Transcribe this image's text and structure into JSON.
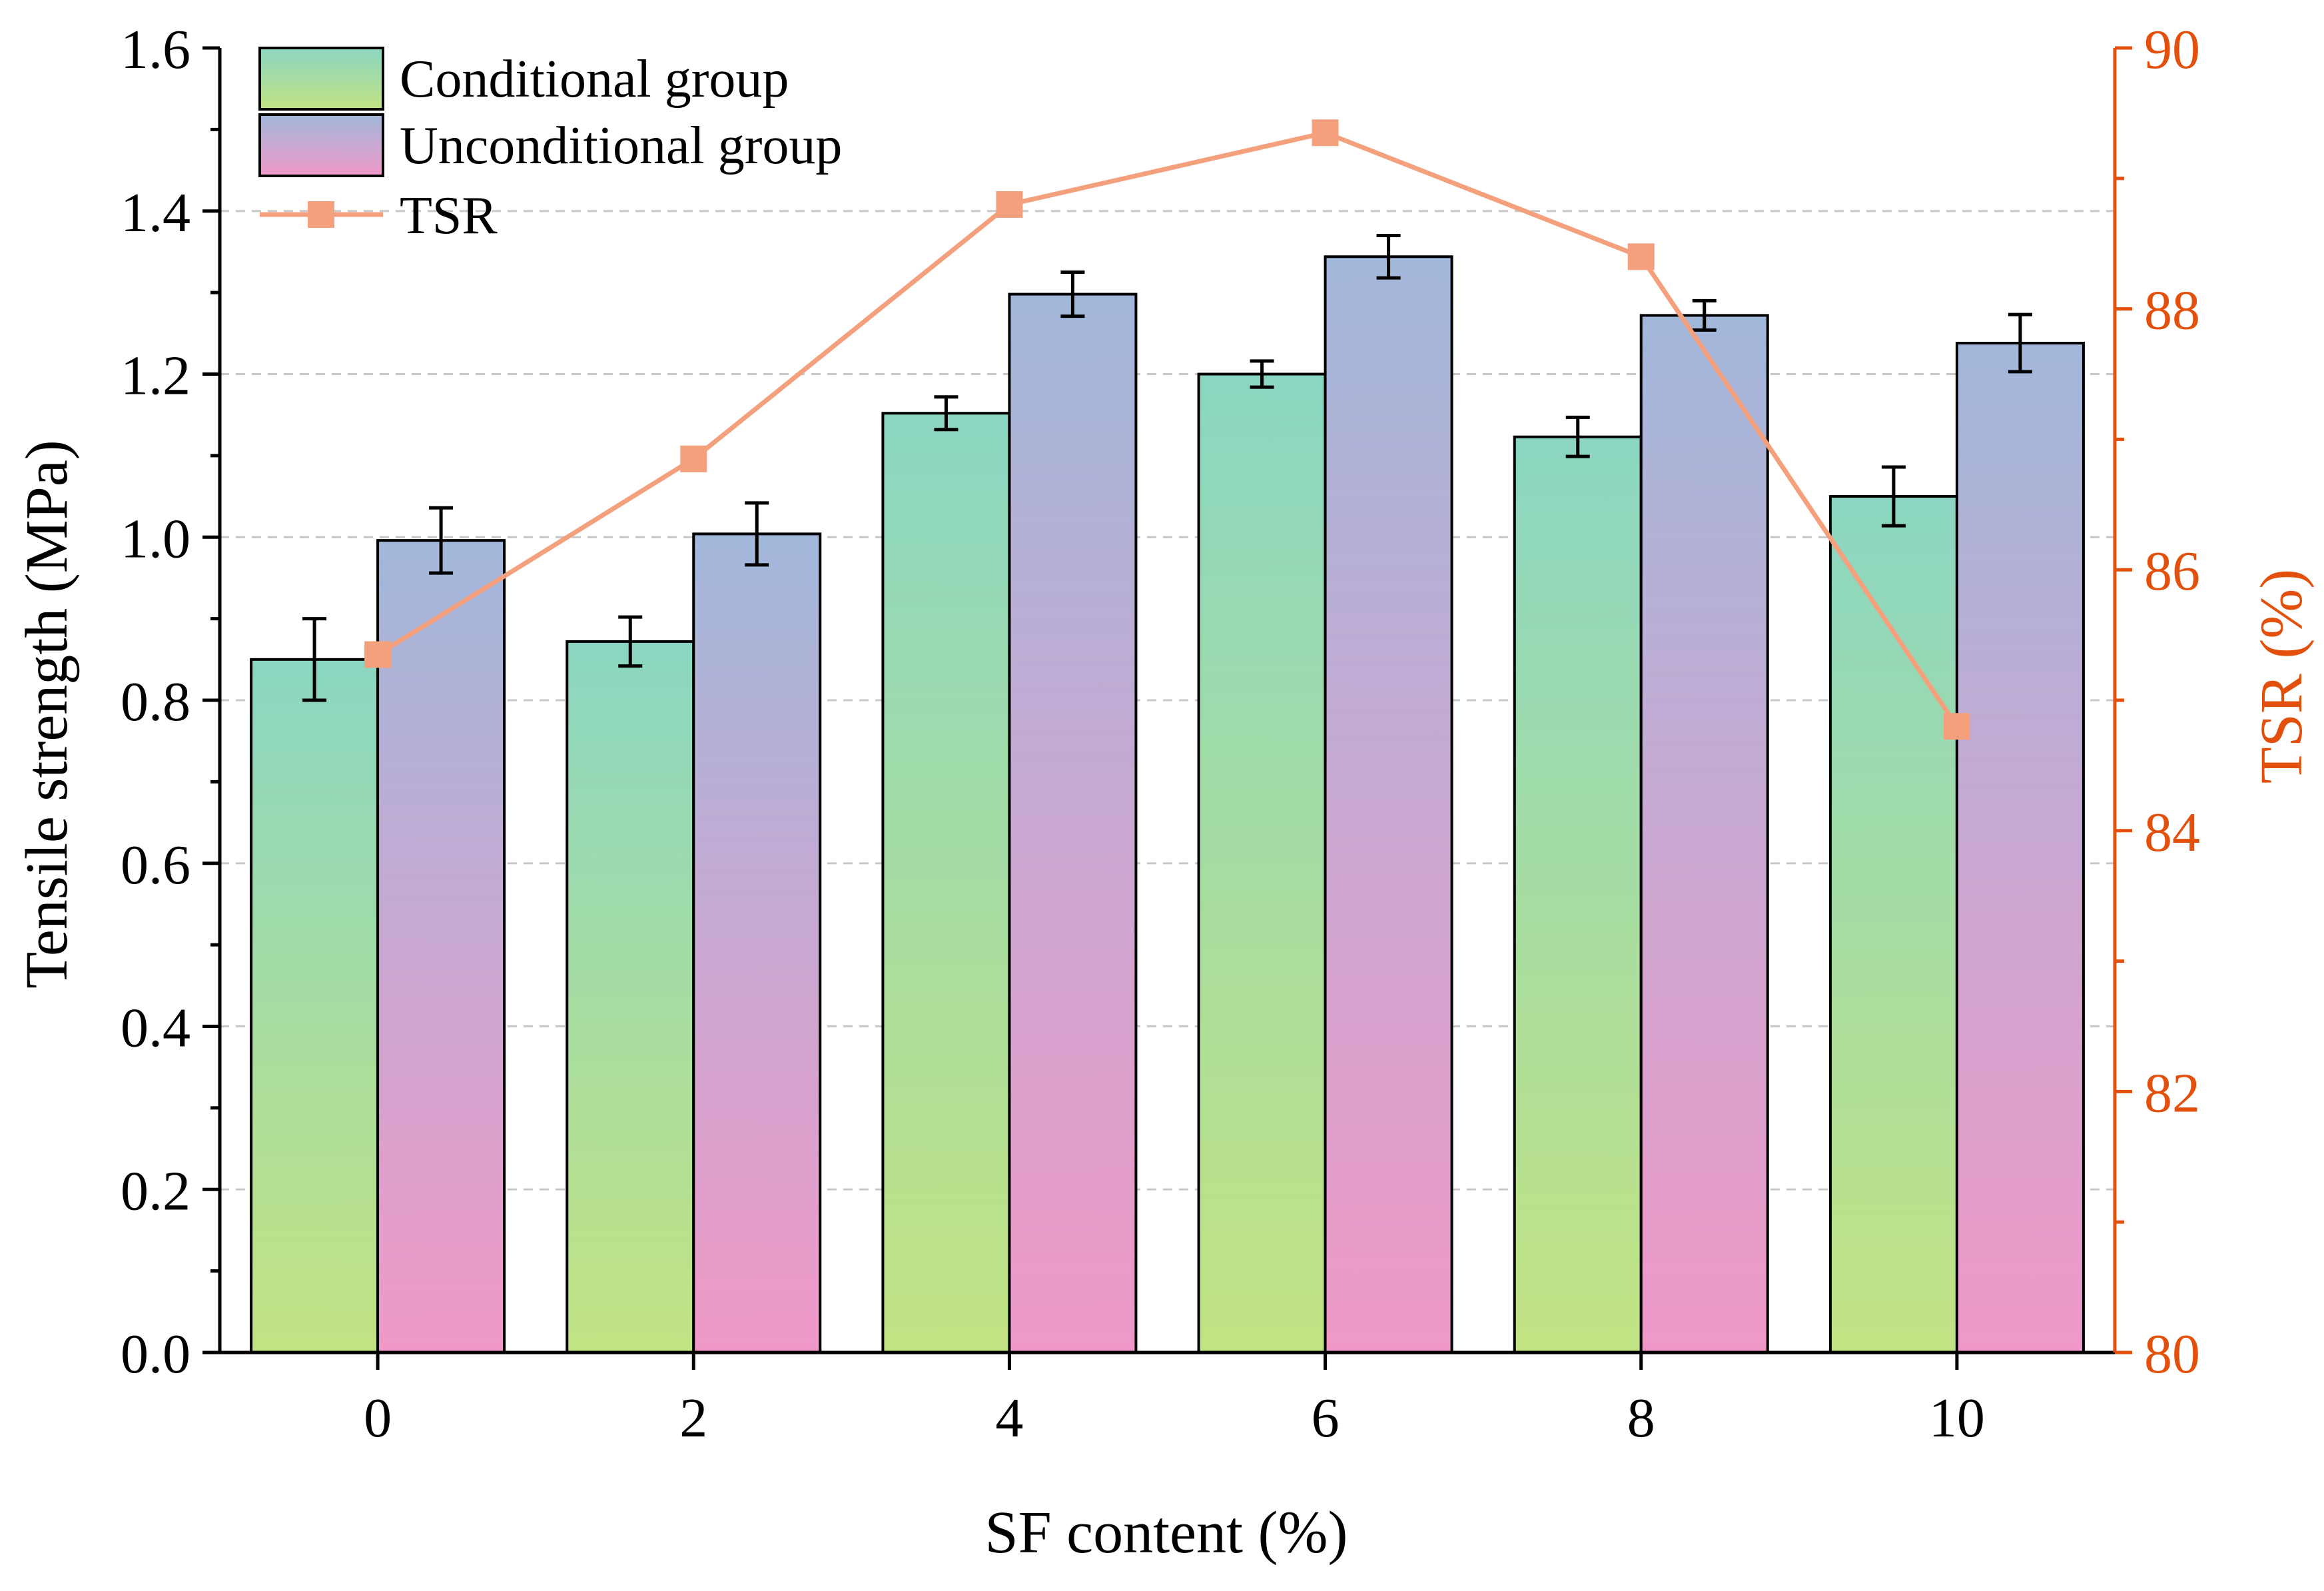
{
  "chart_data": {
    "type": "bar",
    "categories": [
      "0",
      "2",
      "4",
      "6",
      "8",
      "10"
    ],
    "xlabel": "SF content (%)",
    "ylabel": "Tensile strength (MPa)",
    "y2label": "TSR (%)",
    "ylim": [
      0,
      1.6
    ],
    "yticks": [
      "0.0",
      "0.2",
      "0.4",
      "0.6",
      "0.8",
      "1.0",
      "1.2",
      "1.4",
      "1.6"
    ],
    "y2lim": [
      80,
      90
    ],
    "y2ticks": [
      "80",
      "82",
      "84",
      "86",
      "88",
      "90"
    ],
    "grid": "horizontal dashed",
    "legend_position": "top-left",
    "series": [
      {
        "name": "Conditional group",
        "kind": "bar",
        "values": [
          0.85,
          0.872,
          1.152,
          1.2,
          1.123,
          1.05
        ],
        "errors": [
          0.05,
          0.03,
          0.02,
          0.016,
          0.024,
          0.036
        ],
        "gradient_top": "#8bd6c2",
        "gradient_bottom": "#c2e383"
      },
      {
        "name": "Unconditional group",
        "kind": "bar",
        "values": [
          0.996,
          1.004,
          1.298,
          1.344,
          1.272,
          1.238
        ],
        "errors": [
          0.04,
          0.038,
          0.027,
          0.026,
          0.018,
          0.035
        ],
        "gradient_top": "#a2b8db",
        "gradient_bottom": "#f099c8"
      },
      {
        "name": "TSR",
        "kind": "line",
        "axis": "right",
        "values": [
          85.35,
          86.85,
          88.8,
          89.35,
          88.4,
          84.8
        ],
        "color": "#f5a07d"
      }
    ],
    "colors": {
      "right_axis": "#e2500c",
      "axis": "#000000",
      "grid": "#c8c8c8"
    }
  }
}
